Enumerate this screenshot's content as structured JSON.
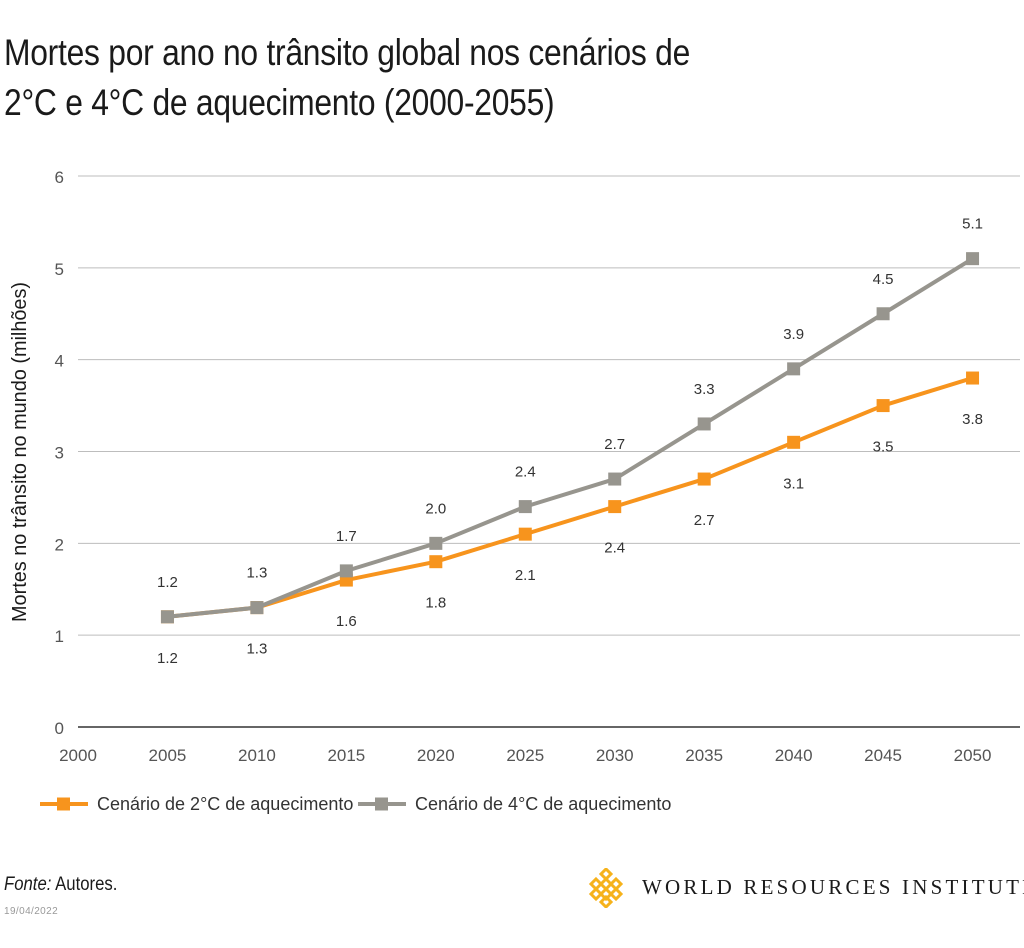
{
  "chart_data": {
    "type": "line",
    "title_lines": [
      "Mortes por ano no trânsito global nos cenários de",
      "2°C e 4°C de aquecimento (2000-2055)"
    ],
    "ylabel": "Mortes no trânsito no mundo (milhões)",
    "xlabel": "",
    "x": [
      2005,
      2010,
      2015,
      2020,
      2025,
      2030,
      2035,
      2040,
      2045,
      2050
    ],
    "xlim": [
      2000,
      2055
    ],
    "x_ticks": [
      "2000",
      "2005",
      "2010",
      "2015",
      "2020",
      "2025",
      "2030",
      "2035",
      "2040",
      "2045",
      "2050"
    ],
    "ylim": [
      0,
      6
    ],
    "y_ticks": [
      "0",
      "1",
      "2",
      "3",
      "4",
      "5",
      "6"
    ],
    "grid": true,
    "legend_position": "bottom",
    "series": [
      {
        "name": "Cenário de 2°C de aquecimento",
        "color": "#f7941d",
        "marker": "square",
        "label_position": "below",
        "values": [
          1.2,
          1.3,
          1.6,
          1.8,
          2.1,
          2.4,
          2.7,
          3.1,
          3.5,
          3.8
        ],
        "labels": [
          "1.2",
          "1.3",
          "1.6",
          "1.8",
          "2.1",
          "2.4",
          "2.7",
          "3.1",
          "3.5",
          "3.8"
        ]
      },
      {
        "name": "Cenário de 4°C de aquecimento",
        "color": "#97958e",
        "marker": "square",
        "label_position": "above",
        "values": [
          1.2,
          1.3,
          1.7,
          2.0,
          2.4,
          2.7,
          3.3,
          3.9,
          4.5,
          5.1
        ],
        "labels": [
          "1.2",
          "1.3",
          "1.7",
          "2.0",
          "2.4",
          "2.7",
          "3.3",
          "3.9",
          "4.5",
          "5.1"
        ]
      }
    ]
  },
  "footer": {
    "source_label": "Fonte:",
    "source_text": " Autores.",
    "date": "19/04/2022",
    "org_name": "WORLD RESOURCES INSTITUTE",
    "logo_icon": "wri-logo-icon",
    "logo_color": "#f6b21b"
  }
}
